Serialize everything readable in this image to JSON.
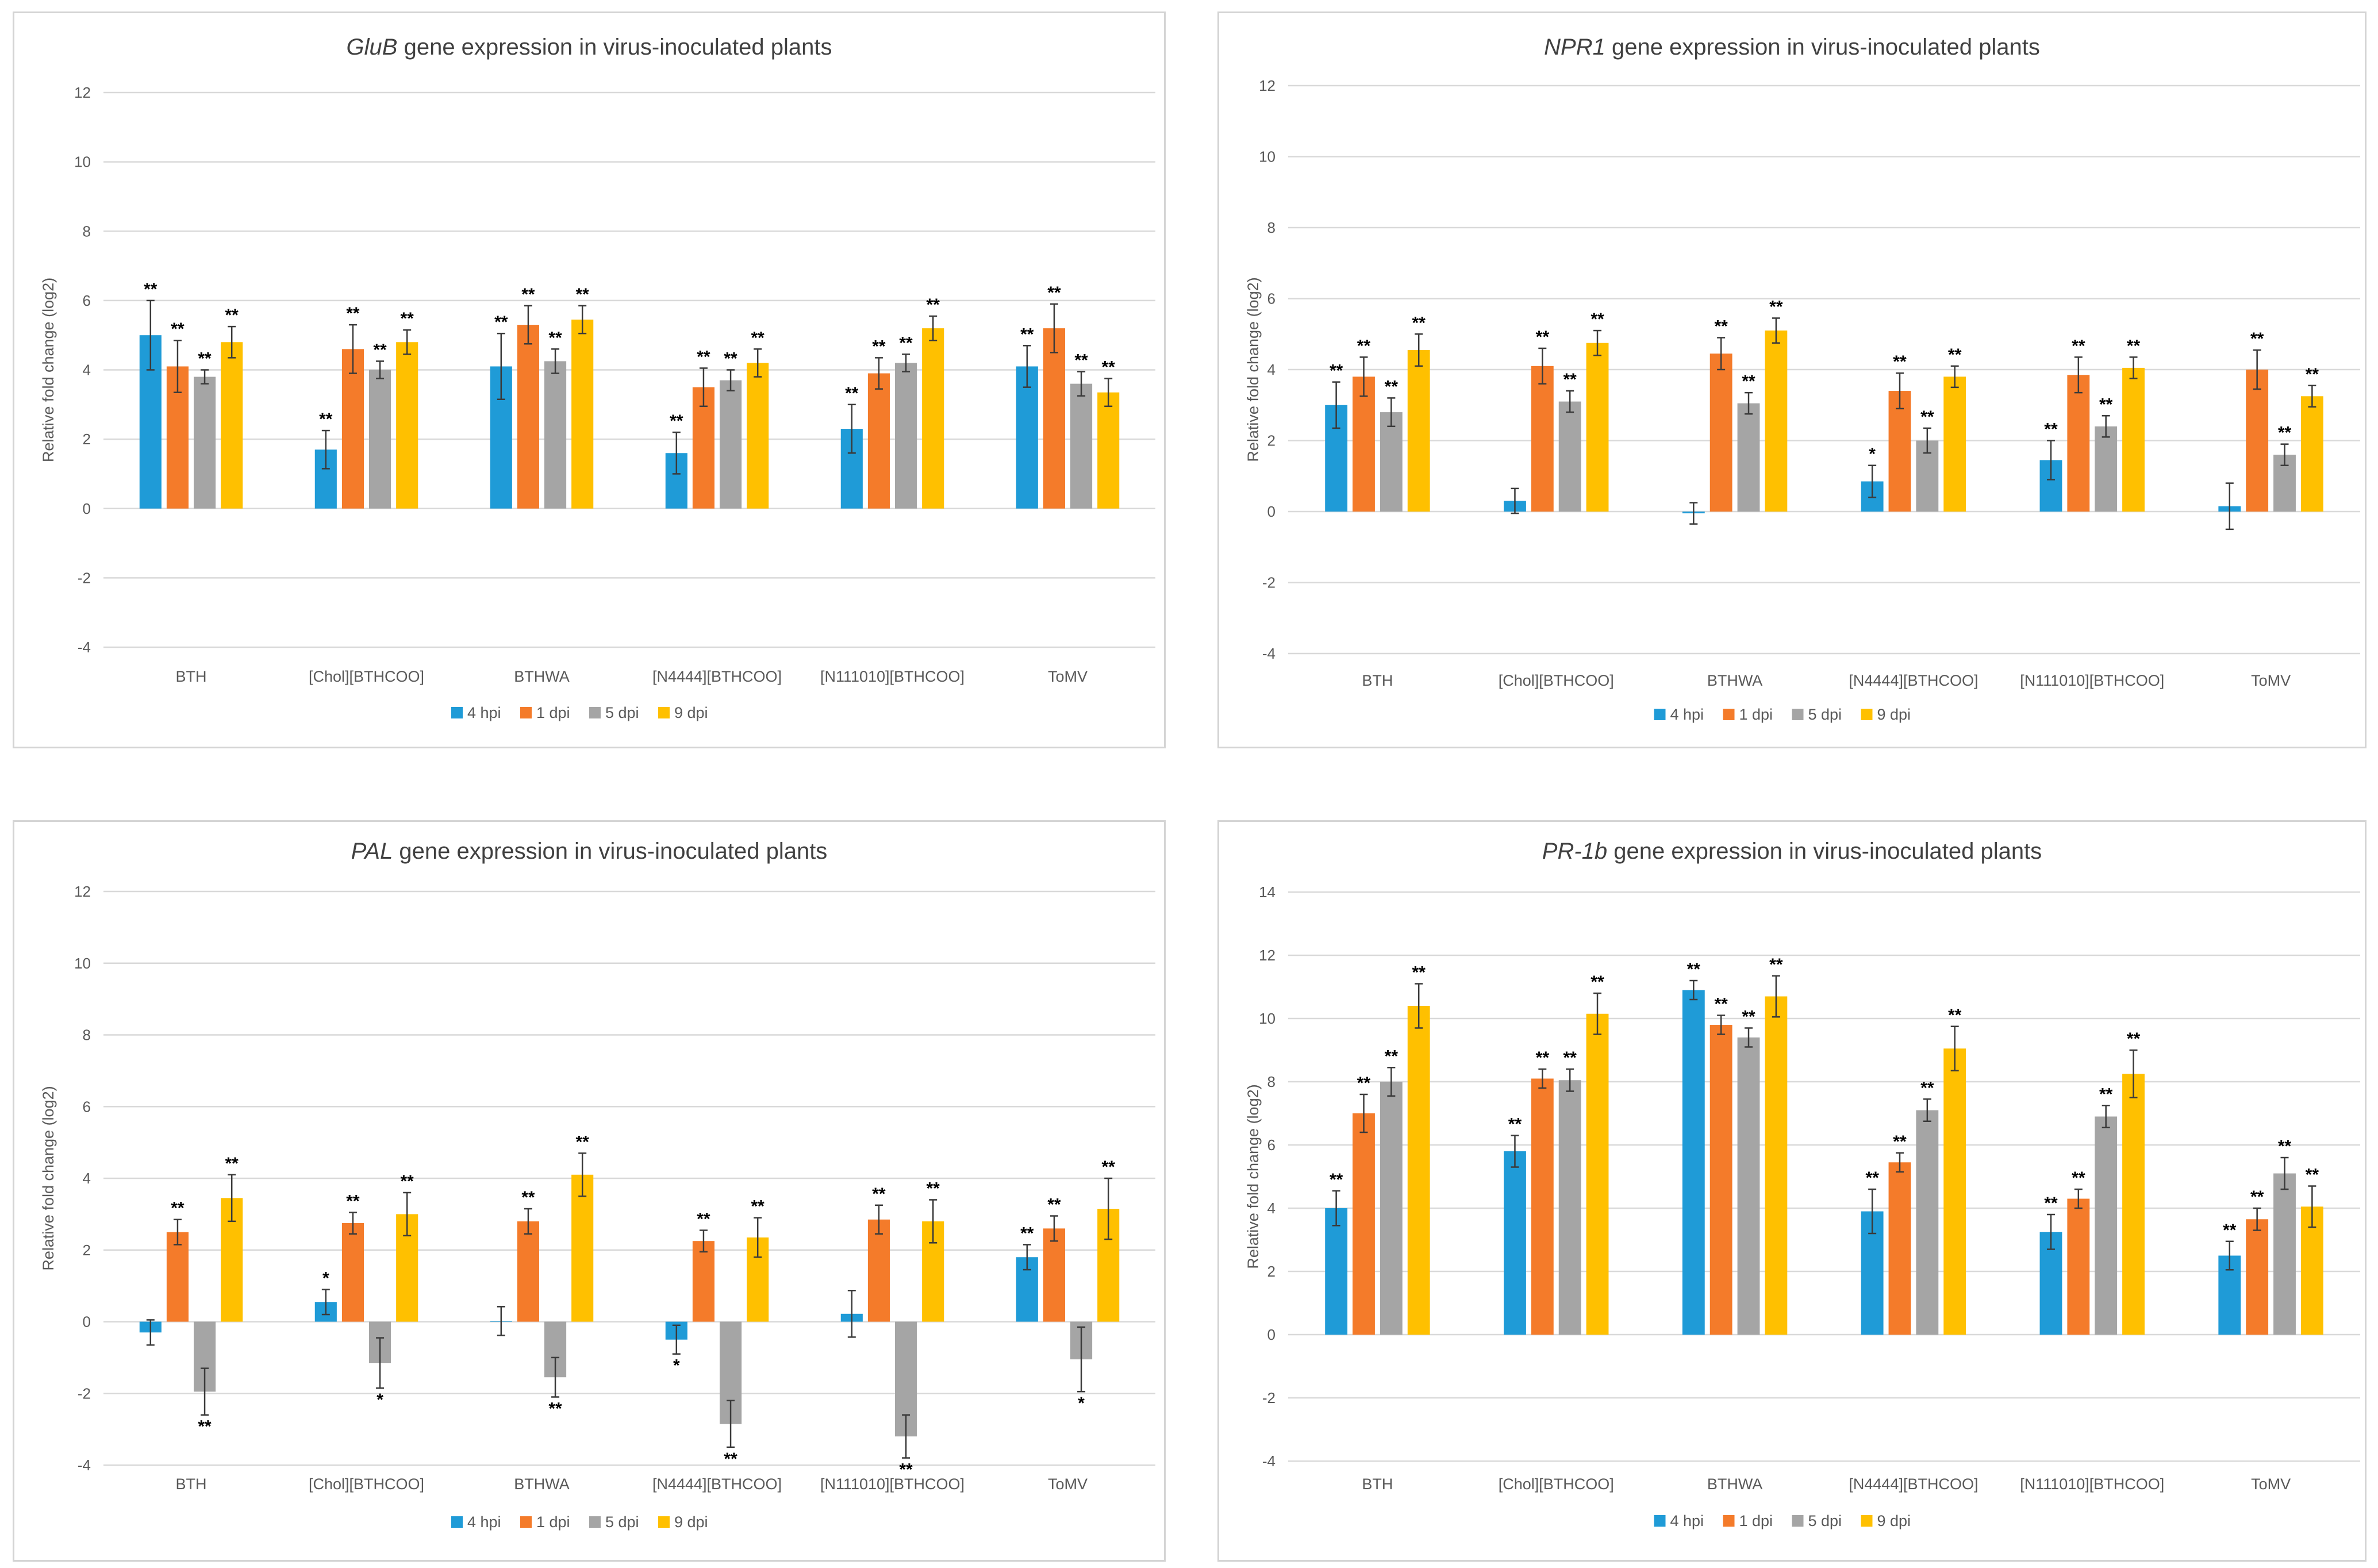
{
  "colors": {
    "4 hpi": "#1f9bd7",
    "1 dpi": "#f47b2a",
    "5 dpi": "#a5a5a5",
    "9 dpi": "#ffc000"
  },
  "chart_data": [
    {
      "type": "bar",
      "title_gene": "GluB",
      "title_rest": " gene expression in virus-inoculated plants",
      "ylabel": "Relative fold change (log2)",
      "xlabel": "",
      "ylim": [
        -4,
        12
      ],
      "yticks": [
        -4,
        -2,
        0,
        2,
        4,
        6,
        8,
        10,
        12
      ],
      "grid": true,
      "legend_position": "bottom",
      "categories": [
        "BTH",
        "[Chol][BTHCOO]",
        "BTHWA",
        "[N4444][BTHCOO]",
        "[N111010][BTHCOO]",
        "ToMV"
      ],
      "series": [
        {
          "name": "4 hpi",
          "values": [
            5.0,
            1.7,
            4.1,
            1.6,
            2.3,
            4.1
          ],
          "errors": [
            1.0,
            0.55,
            0.95,
            0.6,
            0.7,
            0.6
          ],
          "marks": [
            "**",
            "**",
            "**",
            "**",
            "**",
            "**"
          ]
        },
        {
          "name": "1 dpi",
          "values": [
            4.1,
            4.6,
            5.3,
            3.5,
            3.9,
            5.2
          ],
          "errors": [
            0.75,
            0.7,
            0.55,
            0.55,
            0.45,
            0.7
          ],
          "marks": [
            "**",
            "**",
            "**",
            "**",
            "**",
            "**"
          ]
        },
        {
          "name": "5 dpi",
          "values": [
            3.8,
            4.0,
            4.25,
            3.7,
            4.2,
            3.6
          ],
          "errors": [
            0.2,
            0.25,
            0.35,
            0.3,
            0.25,
            0.35
          ],
          "marks": [
            "**",
            "**",
            "**",
            "**",
            "**",
            "**"
          ]
        },
        {
          "name": "9 dpi",
          "values": [
            4.8,
            4.8,
            5.45,
            4.2,
            5.2,
            3.35
          ],
          "errors": [
            0.45,
            0.35,
            0.4,
            0.4,
            0.35,
            0.4
          ],
          "marks": [
            "**",
            "**",
            "**",
            "**",
            "**",
            "**"
          ]
        }
      ]
    },
    {
      "type": "bar",
      "title_gene": "NPR1",
      "title_rest": " gene expression in virus-inoculated plants",
      "ylabel": "Relative fold change (log2)",
      "xlabel": "",
      "ylim": [
        -4,
        12
      ],
      "yticks": [
        -4,
        -2,
        0,
        2,
        4,
        6,
        8,
        10,
        12
      ],
      "grid": true,
      "legend_position": "bottom",
      "categories": [
        "BTH",
        "[Chol][BTHCOO]",
        "BTHWA",
        "[N4444][BTHCOO]",
        "[N111010][BTHCOO]",
        "ToMV"
      ],
      "series": [
        {
          "name": "4 hpi",
          "values": [
            3.0,
            0.3,
            -0.05,
            0.85,
            1.45,
            0.15
          ],
          "errors": [
            0.65,
            0.35,
            0.3,
            0.45,
            0.55,
            0.65
          ],
          "marks": [
            "**",
            "",
            "",
            "*",
            "**",
            ""
          ]
        },
        {
          "name": "1 dpi",
          "values": [
            3.8,
            4.1,
            4.45,
            3.4,
            3.85,
            4.0
          ],
          "errors": [
            0.55,
            0.5,
            0.45,
            0.5,
            0.5,
            0.55
          ],
          "marks": [
            "**",
            "**",
            "**",
            "**",
            "**",
            "**"
          ]
        },
        {
          "name": "5 dpi",
          "values": [
            2.8,
            3.1,
            3.05,
            2.0,
            2.4,
            1.6
          ],
          "errors": [
            0.4,
            0.3,
            0.3,
            0.35,
            0.3,
            0.3
          ],
          "marks": [
            "**",
            "**",
            "**",
            "**",
            "**",
            "**"
          ]
        },
        {
          "name": "9 dpi",
          "values": [
            4.55,
            4.75,
            5.1,
            3.8,
            4.05,
            3.25
          ],
          "errors": [
            0.45,
            0.35,
            0.35,
            0.3,
            0.3,
            0.3
          ],
          "marks": [
            "**",
            "**",
            "**",
            "**",
            "**",
            "**"
          ]
        }
      ]
    },
    {
      "type": "bar",
      "title_gene": "PAL",
      "title_rest": " gene expression in virus-inoculated plants",
      "ylabel": "Relative fold change (log2)",
      "xlabel": "",
      "ylim": [
        -4,
        12
      ],
      "yticks": [
        -4,
        -2,
        0,
        2,
        4,
        6,
        8,
        10,
        12
      ],
      "grid": true,
      "legend_position": "bottom",
      "categories": [
        "BTH",
        "[Chol][BTHCOO]",
        "BTHWA",
        "[N4444][BTHCOO]",
        "[N111010][BTHCOO]",
        "ToMV"
      ],
      "series": [
        {
          "name": "4 hpi",
          "values": [
            -0.3,
            0.55,
            0.02,
            -0.5,
            0.22,
            1.8
          ],
          "errors": [
            0.35,
            0.35,
            0.4,
            0.4,
            0.65,
            0.35
          ],
          "marks": [
            "",
            "*",
            "",
            "*",
            "",
            "**"
          ]
        },
        {
          "name": "1 dpi",
          "values": [
            2.5,
            2.75,
            2.8,
            2.25,
            2.85,
            2.6
          ],
          "errors": [
            0.35,
            0.3,
            0.35,
            0.3,
            0.4,
            0.35
          ],
          "marks": [
            "**",
            "**",
            "**",
            "**",
            "**",
            "**"
          ]
        },
        {
          "name": "5 dpi",
          "values": [
            -1.95,
            -1.15,
            -1.55,
            -2.85,
            -3.2,
            -1.05
          ],
          "errors": [
            0.65,
            0.7,
            0.55,
            0.65,
            0.6,
            0.9
          ],
          "marks": [
            "**",
            "*",
            "**",
            "**",
            "**",
            "*"
          ]
        },
        {
          "name": "9 dpi",
          "values": [
            3.45,
            3.0,
            4.1,
            2.35,
            2.8,
            3.15
          ],
          "errors": [
            0.65,
            0.6,
            0.6,
            0.55,
            0.6,
            0.85
          ],
          "marks": [
            "**",
            "**",
            "**",
            "**",
            "**",
            "**"
          ]
        }
      ]
    },
    {
      "type": "bar",
      "title_gene": "PR-1b",
      "title_rest": " gene expression in virus-inoculated plants",
      "ylabel": "Relative fold change (log2)",
      "xlabel": "",
      "ylim": [
        -4,
        14
      ],
      "yticks": [
        -4,
        -2,
        0,
        2,
        4,
        6,
        8,
        10,
        12,
        14
      ],
      "grid": true,
      "legend_position": "bottom",
      "categories": [
        "BTH",
        "[Chol][BTHCOO]",
        "BTHWA",
        "[N4444][BTHCOO]",
        "[N111010][BTHCOO]",
        "ToMV"
      ],
      "series": [
        {
          "name": "4 hpi",
          "values": [
            4.0,
            5.8,
            10.9,
            3.9,
            3.25,
            2.5
          ],
          "errors": [
            0.55,
            0.5,
            0.3,
            0.7,
            0.55,
            0.45
          ],
          "marks": [
            "**",
            "**",
            "**",
            "**",
            "**",
            "**"
          ]
        },
        {
          "name": "1 dpi",
          "values": [
            7.0,
            8.1,
            9.8,
            5.45,
            4.3,
            3.65
          ],
          "errors": [
            0.6,
            0.3,
            0.3,
            0.3,
            0.3,
            0.35
          ],
          "marks": [
            "**",
            "**",
            "**",
            "**",
            "**",
            "**"
          ]
        },
        {
          "name": "5 dpi",
          "values": [
            8.0,
            8.05,
            9.4,
            7.1,
            6.9,
            5.1
          ],
          "errors": [
            0.45,
            0.35,
            0.3,
            0.35,
            0.35,
            0.5
          ],
          "marks": [
            "**",
            "**",
            "**",
            "**",
            "**",
            "**"
          ]
        },
        {
          "name": "9 dpi",
          "values": [
            10.4,
            10.15,
            10.7,
            9.05,
            8.25,
            4.05
          ],
          "errors": [
            0.7,
            0.65,
            0.65,
            0.7,
            0.75,
            0.65
          ],
          "marks": [
            "**",
            "**",
            "**",
            "**",
            "**",
            "**"
          ]
        }
      ]
    }
  ]
}
